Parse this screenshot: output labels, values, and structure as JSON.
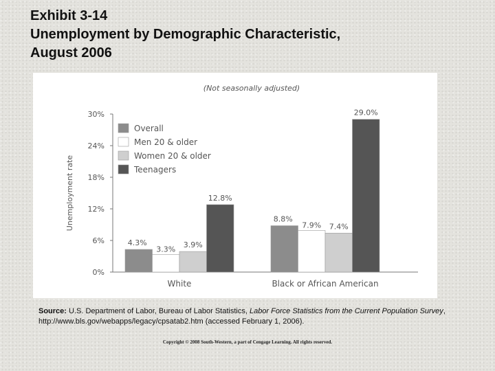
{
  "title": {
    "line1": "Exhibit 3-14",
    "line2": "Unemployment by Demographic Characteristic,",
    "line3": "August 2006"
  },
  "chart_data": {
    "type": "bar",
    "subtitle": "(Not seasonally adjusted)",
    "ylabel": "Unemployment rate",
    "ylim": [
      0,
      30
    ],
    "yticks": [
      "0%",
      "6%",
      "12%",
      "18%",
      "24%",
      "30%"
    ],
    "categories": [
      "White",
      "Black or African American"
    ],
    "series": [
      {
        "name": "Overall",
        "color": "#8c8c8c",
        "values": [
          4.3,
          8.8
        ],
        "labels": [
          "4.3%",
          "8.8%"
        ]
      },
      {
        "name": "Men 20 & older",
        "color": "#ffffff",
        "values": [
          3.3,
          7.9
        ],
        "labels": [
          "3.3%",
          "7.9%"
        ]
      },
      {
        "name": "Women 20 & older",
        "color": "#cfcfcf",
        "values": [
          3.9,
          7.4
        ],
        "labels": [
          "3.9%",
          "7.4%"
        ]
      },
      {
        "name": "Teenagers",
        "color": "#555555",
        "values": [
          12.8,
          29.0
        ],
        "labels": [
          "12.8%",
          "29.0%"
        ]
      }
    ],
    "grid": false,
    "legend_position": "top-left"
  },
  "source": {
    "label": "Source:",
    "text1": " U.S. Department of Labor, Bureau of Labor Statistics, ",
    "italic1": "Labor Force Statistics from the Current Population Survey",
    "text2": ", http://www.bls.gov/webapps/legacy/cpsatab2.htm (accessed February 1, 2006)."
  },
  "copyright": "Copyright © 2008 South-Western, a part of Cengage Learning. All rights reserved."
}
